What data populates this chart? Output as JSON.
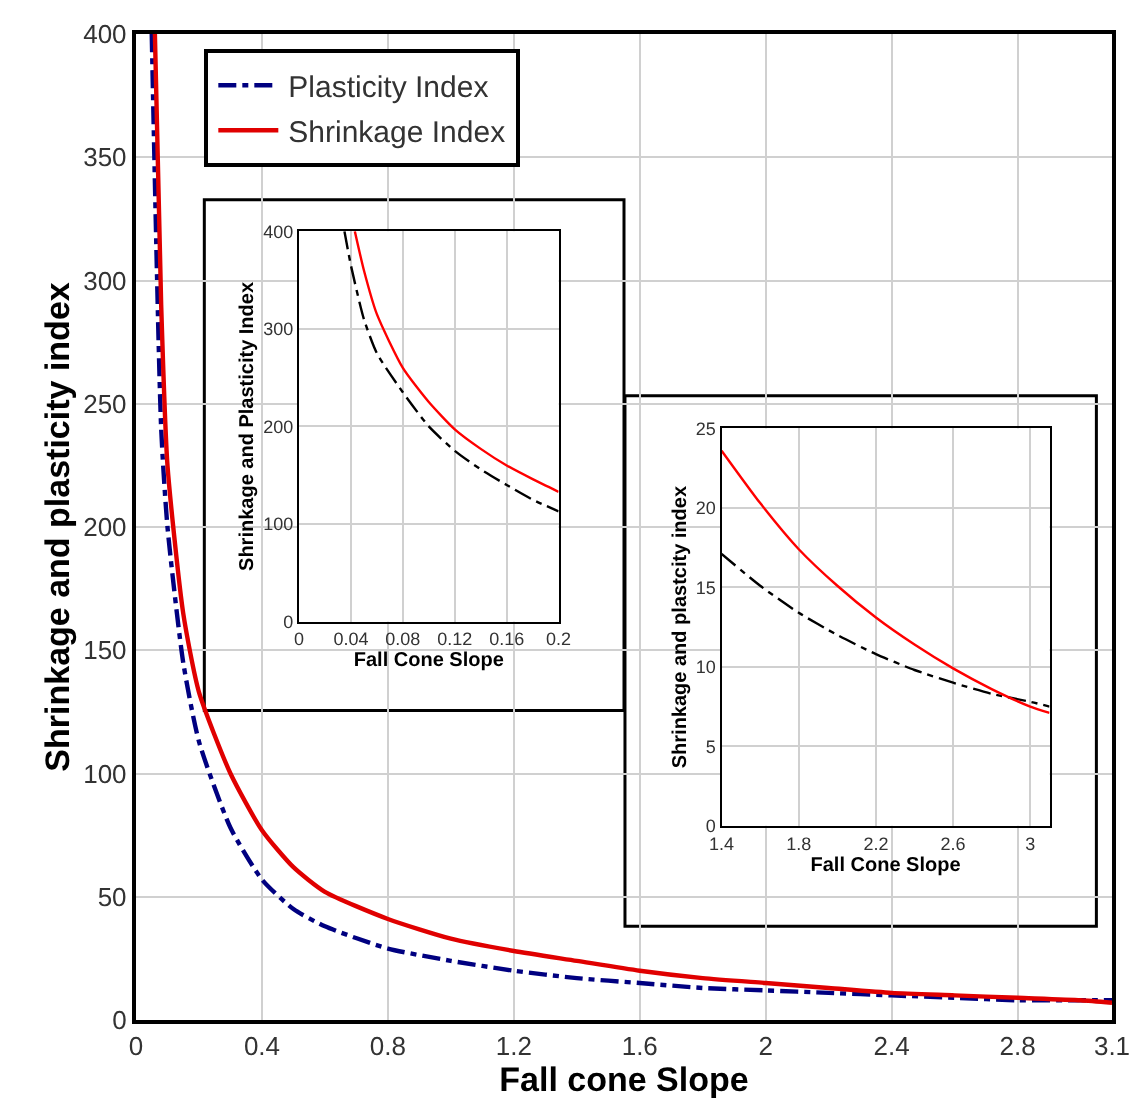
{
  "chart_data": [
    {
      "type": "line",
      "xlabel": "Fall cone Slope",
      "ylabel": "Shrinkage and plasticity index",
      "xlim": [
        0,
        3.1
      ],
      "xticks": [
        0,
        0.4,
        0.8,
        1.2,
        1.6,
        2,
        2.4,
        2.8,
        3.1
      ],
      "ylim": [
        0,
        400
      ],
      "yticks": [
        0,
        50,
        100,
        150,
        200,
        250,
        300,
        350,
        400
      ],
      "grid": true,
      "legend": "top left",
      "series": [
        {
          "name": "Plasticity Index",
          "color": "#000080",
          "line_style": "dashed",
          "x": [
            0.05,
            0.08,
            0.1,
            0.15,
            0.2,
            0.3,
            0.4,
            0.5,
            0.6,
            0.8,
            1.0,
            1.2,
            1.4,
            1.6,
            1.8,
            2.0,
            2.2,
            2.4,
            2.6,
            2.8,
            3.0,
            3.1
          ],
          "values": [
            400,
            240,
            200,
            145,
            113,
            78,
            57,
            45,
            38,
            29,
            24,
            20,
            17,
            15,
            13,
            12,
            11,
            10,
            9,
            8,
            8,
            8
          ]
        },
        {
          "name": "Shrinkage Index",
          "color": "#e00000",
          "line_style": "solid",
          "x": [
            0.06,
            0.08,
            0.1,
            0.15,
            0.2,
            0.3,
            0.4,
            0.5,
            0.6,
            0.8,
            1.0,
            1.2,
            1.4,
            1.6,
            1.8,
            2.0,
            2.2,
            2.4,
            2.6,
            2.8,
            3.0,
            3.1
          ],
          "values": [
            400,
            290,
            225,
            165,
            133,
            100,
            77,
            62,
            52,
            41,
            33,
            28,
            24,
            20,
            17,
            15,
            13,
            11,
            10,
            9,
            8,
            7
          ]
        }
      ]
    },
    {
      "type": "line",
      "xlabel": "Fall Cone Slope",
      "ylabel": "Shrinkage and Plasticity Index",
      "xlim": [
        0,
        0.2
      ],
      "xticks": [
        0,
        0.04,
        0.08,
        0.12,
        0.16,
        0.2
      ],
      "ylim": [
        0,
        400
      ],
      "yticks": [
        0,
        100,
        200,
        300,
        400
      ],
      "grid": true,
      "series": [
        {
          "color": "#000000",
          "line_style": "dashed",
          "x": [
            0.035,
            0.04,
            0.05,
            0.06,
            0.08,
            0.1,
            0.12,
            0.14,
            0.16,
            0.18,
            0.2
          ],
          "values": [
            400,
            365,
            310,
            275,
            235,
            200,
            175,
            156,
            140,
            125,
            113
          ]
        },
        {
          "color": "#ff0000",
          "line_style": "solid",
          "x": [
            0.043,
            0.05,
            0.06,
            0.08,
            0.1,
            0.12,
            0.14,
            0.16,
            0.18,
            0.2
          ],
          "values": [
            400,
            360,
            315,
            260,
            225,
            197,
            177,
            160,
            146,
            133
          ]
        }
      ]
    },
    {
      "type": "line",
      "xlabel": "Fall Cone Slope",
      "ylabel": "Shrinkage and plastcity index",
      "xlim": [
        1.4,
        3.1
      ],
      "xticks": [
        1.4,
        1.8,
        2.2,
        2.6,
        3
      ],
      "ylim": [
        0,
        25
      ],
      "yticks": [
        0,
        5,
        10,
        15,
        20,
        25
      ],
      "grid": true,
      "series": [
        {
          "color": "#000000",
          "line_style": "dashed",
          "x": [
            1.4,
            1.6,
            1.8,
            2.0,
            2.2,
            2.4,
            2.6,
            2.8,
            3.0,
            3.1
          ],
          "values": [
            17.1,
            15.1,
            13.4,
            12.0,
            10.8,
            9.8,
            9.0,
            8.3,
            7.8,
            7.5
          ]
        },
        {
          "color": "#ff0000",
          "line_style": "solid",
          "x": [
            1.4,
            1.6,
            1.8,
            2.0,
            2.2,
            2.4,
            2.6,
            2.8,
            3.0,
            3.1
          ],
          "values": [
            23.6,
            20.3,
            17.4,
            15.1,
            13.1,
            11.4,
            9.9,
            8.6,
            7.5,
            7.1
          ]
        }
      ]
    }
  ]
}
